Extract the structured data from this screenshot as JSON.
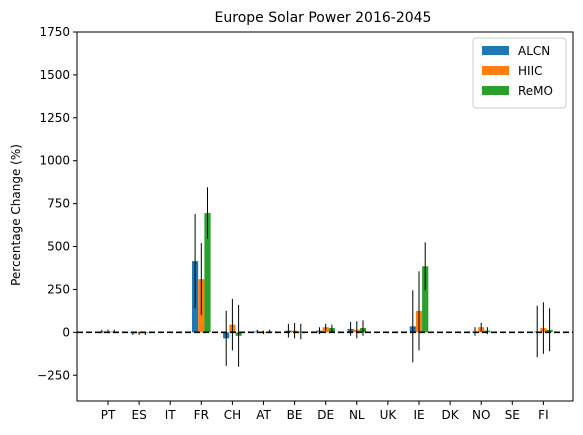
{
  "chart_data": {
    "type": "bar",
    "title": "Europe Solar Power 2016-2045",
    "xlabel": "",
    "ylabel": "Percentage Change (%)",
    "ylim": [
      -400,
      1750
    ],
    "yticks": [
      -250,
      0,
      250,
      500,
      750,
      1000,
      1250,
      1500,
      1750
    ],
    "categories": [
      "PT",
      "ES",
      "IT",
      "FR",
      "CH",
      "AT",
      "BE",
      "DE",
      "NL",
      "UK",
      "IE",
      "DK",
      "NO",
      "SE",
      "FI"
    ],
    "series": [
      {
        "name": "ALCN",
        "color": "#1f77b4",
        "values": [
          5,
          -5,
          null,
          415,
          -35,
          5,
          10,
          10,
          20,
          null,
          35,
          null,
          5,
          null,
          5
        ],
        "error": [
          10,
          10,
          null,
          275,
          160,
          10,
          40,
          20,
          40,
          null,
          210,
          null,
          25,
          null,
          150
        ]
      },
      {
        "name": "HIIC",
        "color": "#ff7f0e",
        "values": [
          5,
          -5,
          null,
          310,
          45,
          0,
          10,
          30,
          15,
          null,
          125,
          null,
          30,
          null,
          25
        ],
        "error": [
          10,
          10,
          null,
          210,
          150,
          10,
          45,
          20,
          50,
          null,
          230,
          null,
          25,
          null,
          150
        ]
      },
      {
        "name": "ReMO",
        "color": "#2ca02c",
        "values": [
          5,
          -5,
          null,
          695,
          -20,
          5,
          5,
          25,
          25,
          null,
          385,
          null,
          10,
          null,
          15
        ],
        "error": [
          10,
          10,
          null,
          150,
          180,
          10,
          45,
          20,
          45,
          null,
          140,
          null,
          20,
          null,
          125
        ]
      }
    ],
    "reference_line": {
      "y": 0,
      "style": "dashed",
      "color": "#000000"
    },
    "grid": false,
    "legend_position": "top-right"
  }
}
